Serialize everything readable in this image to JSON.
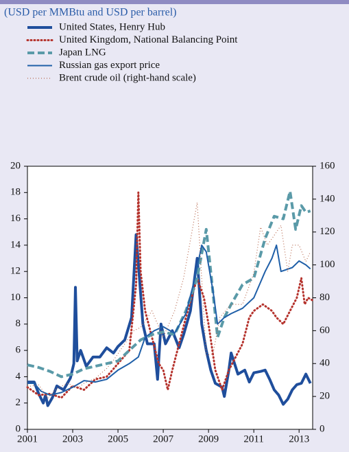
{
  "chart_data": {
    "type": "line",
    "subtitle": "(USD per MMBtu and USD per barrel)",
    "xlim": [
      2001,
      2013.6
    ],
    "xticks": [
      2001,
      2003,
      2005,
      2007,
      2009,
      2011,
      2013
    ],
    "ylim": [
      0,
      20
    ],
    "yticks": [
      0,
      2,
      4,
      6,
      8,
      10,
      12,
      14,
      16,
      18,
      20
    ],
    "y2lim": [
      0,
      160
    ],
    "y2ticks": [
      0,
      20,
      40,
      60,
      80,
      100,
      120,
      140,
      160
    ],
    "series": [
      {
        "name": "United States, Henry Hub",
        "color": "#1f4e9c",
        "style": "thick",
        "x": [
          2001.0,
          2001.3,
          2001.5,
          2001.7,
          2001.8,
          2001.9,
          2002.1,
          2002.3,
          2002.6,
          2002.9,
          2003.05,
          2003.12,
          2003.2,
          2003.35,
          2003.6,
          2003.9,
          2004.2,
          2004.5,
          2004.8,
          2005.0,
          2005.3,
          2005.6,
          2005.8,
          2005.95,
          2006.1,
          2006.3,
          2006.6,
          2006.75,
          2006.9,
          2007.1,
          2007.4,
          2007.7,
          2007.9,
          2008.2,
          2008.5,
          2008.7,
          2008.9,
          2009.1,
          2009.3,
          2009.6,
          2009.7,
          2009.9,
          2010.0,
          2010.3,
          2010.6,
          2010.8,
          2011.0,
          2011.3,
          2011.5,
          2011.7,
          2011.9,
          2012.1,
          2012.3,
          2012.5,
          2012.7,
          2012.9,
          2013.1,
          2013.3,
          2013.5
        ],
        "values": [
          3.6,
          3.6,
          2.7,
          2.0,
          2.6,
          1.8,
          2.4,
          3.3,
          3.0,
          3.9,
          5.0,
          10.8,
          5.2,
          6.0,
          4.8,
          5.5,
          5.5,
          6.2,
          5.8,
          6.3,
          6.8,
          8.5,
          14.8,
          11.5,
          8.0,
          6.5,
          6.5,
          3.8,
          8.0,
          6.5,
          7.5,
          6.2,
          7.2,
          9.0,
          13.0,
          8.0,
          6.0,
          4.5,
          3.5,
          3.2,
          2.5,
          4.5,
          5.8,
          4.2,
          4.5,
          3.6,
          4.3,
          4.4,
          4.5,
          3.8,
          3.0,
          2.6,
          1.9,
          2.3,
          3.0,
          3.4,
          3.5,
          4.2,
          3.5
        ]
      },
      {
        "name": "United Kingdom, National Balancing Point",
        "color": "#b5332d",
        "style": "dotted",
        "x": [
          2001.0,
          2001.5,
          2002.0,
          2002.5,
          2003.0,
          2003.5,
          2004.0,
          2004.5,
          2005.0,
          2005.5,
          2005.8,
          2005.9,
          2006.0,
          2006.2,
          2006.5,
          2006.8,
          2007.0,
          2007.2,
          2007.4,
          2007.7,
          2008.0,
          2008.5,
          2008.8,
          2009.0,
          2009.3,
          2009.6,
          2009.9,
          2010.2,
          2010.5,
          2010.8,
          2011.0,
          2011.4,
          2011.8,
          2012.0,
          2012.3,
          2012.6,
          2012.9,
          2013.1,
          2013.25,
          2013.4,
          2013.6
        ],
        "values": [
          3.2,
          2.6,
          2.7,
          2.4,
          3.3,
          3.0,
          3.8,
          4.0,
          5.0,
          6.0,
          11,
          18,
          12,
          9,
          7,
          5,
          4.5,
          3.0,
          4.5,
          6.5,
          8.5,
          11.5,
          10,
          8,
          4.5,
          3.0,
          4.5,
          5.5,
          6.5,
          8.5,
          9.0,
          9.5,
          9.0,
          8.5,
          8.0,
          9.0,
          10.0,
          11.5,
          9.5,
          10.0,
          9.8
        ]
      },
      {
        "name": "Japan LNG",
        "color": "#5a9aa8",
        "style": "dashed",
        "x": [
          2001.0,
          2001.5,
          2002.0,
          2002.5,
          2003.0,
          2003.5,
          2004.0,
          2004.5,
          2005.0,
          2005.5,
          2006.0,
          2006.5,
          2007.0,
          2007.5,
          2008.0,
          2008.5,
          2008.9,
          2009.1,
          2009.4,
          2009.7,
          2010.0,
          2010.5,
          2011.0,
          2011.5,
          2011.9,
          2012.3,
          2012.6,
          2012.85,
          2013.1,
          2013.3,
          2013.5
        ],
        "values": [
          4.9,
          4.7,
          4.4,
          4.0,
          4.2,
          4.6,
          4.8,
          5.0,
          5.2,
          6.0,
          6.8,
          7.2,
          7.4,
          7.2,
          9.0,
          11.5,
          15.2,
          12.0,
          7.0,
          8.5,
          9.5,
          11.0,
          11.5,
          14.5,
          16.2,
          16.0,
          18.1,
          15.2,
          17.0,
          16.5,
          16.6
        ]
      },
      {
        "name": "Russian gas export price",
        "color": "#1f5fa8",
        "style": "thin",
        "x": [
          2001.0,
          2001.3,
          2001.6,
          2002.0,
          2002.5,
          2003.0,
          2003.5,
          2004.0,
          2004.5,
          2005.0,
          2005.5,
          2005.9,
          2006.2,
          2006.6,
          2007.0,
          2007.5,
          2008.0,
          2008.4,
          2008.7,
          2008.9,
          2009.2,
          2009.4,
          2009.7,
          2010.0,
          2010.5,
          2011.0,
          2011.5,
          2011.8,
          2012.0,
          2012.2,
          2012.7,
          2013.0,
          2013.3,
          2013.5
        ],
        "values": [
          3.5,
          3.5,
          2.9,
          2.6,
          2.8,
          3.2,
          3.7,
          3.6,
          3.8,
          4.5,
          5.0,
          5.5,
          7.0,
          7.5,
          7.8,
          7.3,
          8.8,
          11.5,
          14.0,
          13.5,
          10.5,
          8.0,
          8.5,
          8.8,
          9.2,
          10.0,
          12.0,
          13.0,
          14.0,
          12.0,
          12.3,
          12.8,
          12.5,
          12.2
        ]
      },
      {
        "name": "Brent crude oil (right-hand scale)",
        "color": "#b86a50",
        "style": "finedot",
        "axis": "y2",
        "x": [
          2001.0,
          2001.5,
          2001.9,
          2002.3,
          2002.8,
          2003.2,
          2003.5,
          2004.0,
          2004.5,
          2004.8,
          2005.2,
          2005.7,
          2006.0,
          2006.5,
          2007.0,
          2007.5,
          2007.9,
          2008.5,
          2008.9,
          2009.2,
          2009.5,
          2010.0,
          2010.5,
          2011.0,
          2011.3,
          2011.6,
          2012.2,
          2012.5,
          2012.7,
          2013.0,
          2013.3,
          2013.5
        ],
        "values": [
          26,
          27,
          19,
          25,
          28,
          25,
          28,
          31,
          37,
          42,
          50,
          60,
          62,
          72,
          56,
          72,
          92,
          138,
          45,
          46,
          68,
          76,
          76,
          95,
          123,
          112,
          124,
          96,
          112,
          112,
          102,
          108
        ]
      }
    ]
  }
}
